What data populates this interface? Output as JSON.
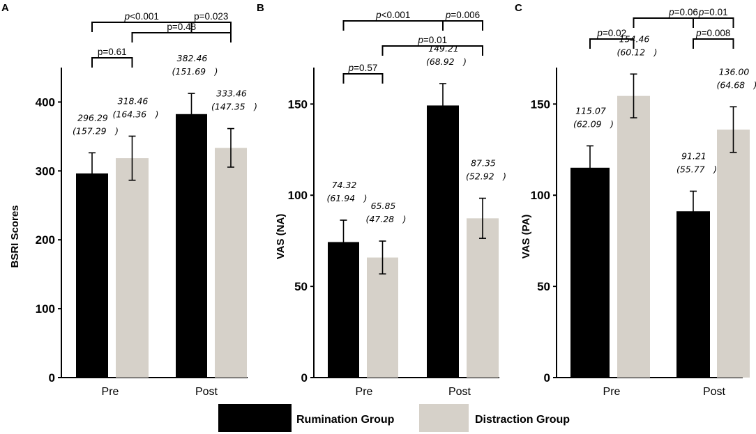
{
  "chart_data": [
    {
      "type": "bar",
      "panel": "A",
      "ylabel": "BSRI  Scores",
      "ylim": [
        0,
        450
      ],
      "yticks": [
        "0",
        "100",
        "200",
        "300",
        "400"
      ],
      "categories": [
        "Pre",
        "Post"
      ],
      "series": [
        {
          "name": "Rumination Group",
          "color": "#000000",
          "values": [
            296.29,
            382.46
          ],
          "err": [
            30,
            30
          ],
          "labels": [
            [
              "296.29",
              "(157.29　)"
            ],
            [
              "382.46",
              "(151.69　)"
            ]
          ]
        },
        {
          "name": "Distraction Group",
          "color": "#d6d1c9",
          "values": [
            318.46,
            333.46
          ],
          "err": [
            32,
            28
          ],
          "labels": [
            [
              "318.46",
              "(164.36　)"
            ],
            [
              "333.46",
              "(147.35　)"
            ]
          ]
        }
      ],
      "comparisons": [
        {
          "p": "p<0.001",
          "italic": true,
          "from": [
            0,
            0
          ],
          "to": [
            1,
            0
          ],
          "level": 3
        },
        {
          "p": "p=0.023",
          "italic": false,
          "from": [
            1,
            0
          ],
          "to": [
            1,
            1
          ],
          "level": 3
        },
        {
          "p": "p=0.48",
          "italic": false,
          "from": [
            0,
            1
          ],
          "to": [
            1,
            1
          ],
          "level": 2
        },
        {
          "p": "p=0.61",
          "italic": false,
          "from": [
            0,
            0
          ],
          "to": [
            0,
            1
          ],
          "level": 1
        }
      ]
    },
    {
      "type": "bar",
      "panel": "B",
      "ylabel": "VAS (NA)",
      "ylim": [
        0,
        170
      ],
      "yticks": [
        "0",
        "50",
        "100",
        "150"
      ],
      "categories": [
        "Pre",
        "Post"
      ],
      "series": [
        {
          "name": "Rumination Group",
          "color": "#000000",
          "values": [
            74.32,
            149.21
          ],
          "err": [
            12,
            12
          ],
          "labels": [
            [
              "74.32",
              "(61.94　)"
            ],
            [
              "149.21",
              "(68.92　)"
            ]
          ]
        },
        {
          "name": "Distraction Group",
          "color": "#d6d1c9",
          "values": [
            65.85,
            87.35
          ],
          "err": [
            9,
            11
          ],
          "labels": [
            [
              "65.85",
              "(47.28　)"
            ],
            [
              "87.35",
              "(52.92　)"
            ]
          ]
        }
      ],
      "comparisons": [
        {
          "p": "p<0.001",
          "italic": true,
          "from": [
            0,
            0
          ],
          "to": [
            1,
            0
          ],
          "level": 3
        },
        {
          "p": "p=0.006",
          "italic": true,
          "from": [
            1,
            0
          ],
          "to": [
            1,
            1
          ],
          "level": 3
        },
        {
          "p": "p=0.01",
          "italic": true,
          "from": [
            0,
            1
          ],
          "to": [
            1,
            1
          ],
          "level": 2
        },
        {
          "p": "p=0.57",
          "italic": true,
          "from": [
            0,
            0
          ],
          "to": [
            0,
            1
          ],
          "level": 1
        }
      ]
    },
    {
      "type": "bar",
      "panel": "C",
      "ylabel": "VAS  (PA)",
      "ylim": [
        0,
        170
      ],
      "yticks": [
        "0",
        "50",
        "100",
        "150"
      ],
      "categories": [
        "Pre",
        "Post"
      ],
      "series": [
        {
          "name": "Rumination Group",
          "color": "#000000",
          "values": [
            115.07,
            91.21
          ],
          "err": [
            12,
            11
          ],
          "labels": [
            [
              "115.07",
              "(62.09　)"
            ],
            [
              "91.21",
              "(55.77　)"
            ]
          ]
        },
        {
          "name": "Distraction Group",
          "color": "#d6d1c9",
          "values": [
            154.46,
            136.0
          ],
          "err": [
            12,
            12.5
          ],
          "labels": [
            [
              "154.46",
              "(60.12　)"
            ],
            [
              "136.00",
              "(64.68　)"
            ]
          ]
        }
      ],
      "comparisons": [
        {
          "p": "p=0.06",
          "italic": true,
          "from": [
            0,
            1
          ],
          "to": [
            1,
            1
          ],
          "level": 3
        },
        {
          "p": "p=0.01",
          "italic": true,
          "from": [
            1,
            0
          ],
          "to": [
            1,
            1
          ],
          "level": 3
        },
        {
          "p": "p=0.02",
          "italic": true,
          "from": [
            0,
            0
          ],
          "to": [
            0,
            1
          ],
          "level": 2
        },
        {
          "p": "p=0.008",
          "italic": true,
          "from": [
            1,
            0
          ],
          "to": [
            1,
            1
          ],
          "level": 2
        }
      ]
    }
  ],
  "legend": [
    {
      "label": "Rumination Group",
      "color": "#000000"
    },
    {
      "label": "Distraction Group",
      "color": "#d6d1c9"
    }
  ]
}
